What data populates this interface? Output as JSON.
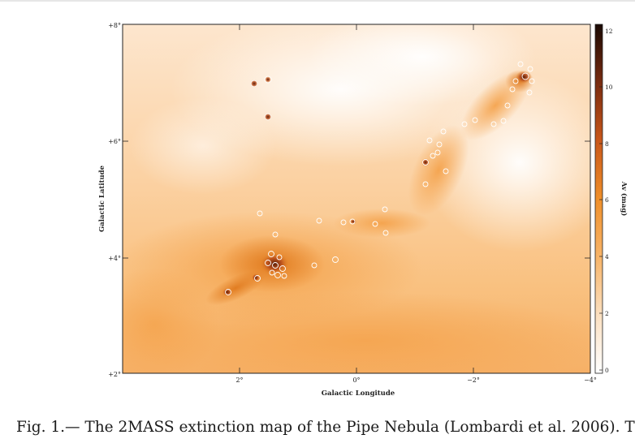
{
  "figure": {
    "x_axis_label": "Galactic Longitude",
    "y_axis_label": "Galactic Latitude",
    "x_tick_labels": [
      "2°",
      "0°",
      "−2°",
      "−4°"
    ],
    "y_tick_labels": [
      "+8°",
      "+6°",
      "+4°",
      "+2°"
    ],
    "colorbar_label": "Av (mag)",
    "colorbar_ticks": [
      "12",
      "10",
      "8",
      "6",
      "4",
      "2",
      "0"
    ],
    "colorbar_range": [
      0,
      12
    ],
    "colormap": [
      "#ffffff",
      "#fbe1c3",
      "#f8b56a",
      "#ef8f2a",
      "#c8561a",
      "#7a2c10",
      "#1a0903"
    ],
    "caption": "Fig. 1.— The 2MASS extinction map of the Pipe Nebula (Lombardi et al. 2006). T"
  }
}
